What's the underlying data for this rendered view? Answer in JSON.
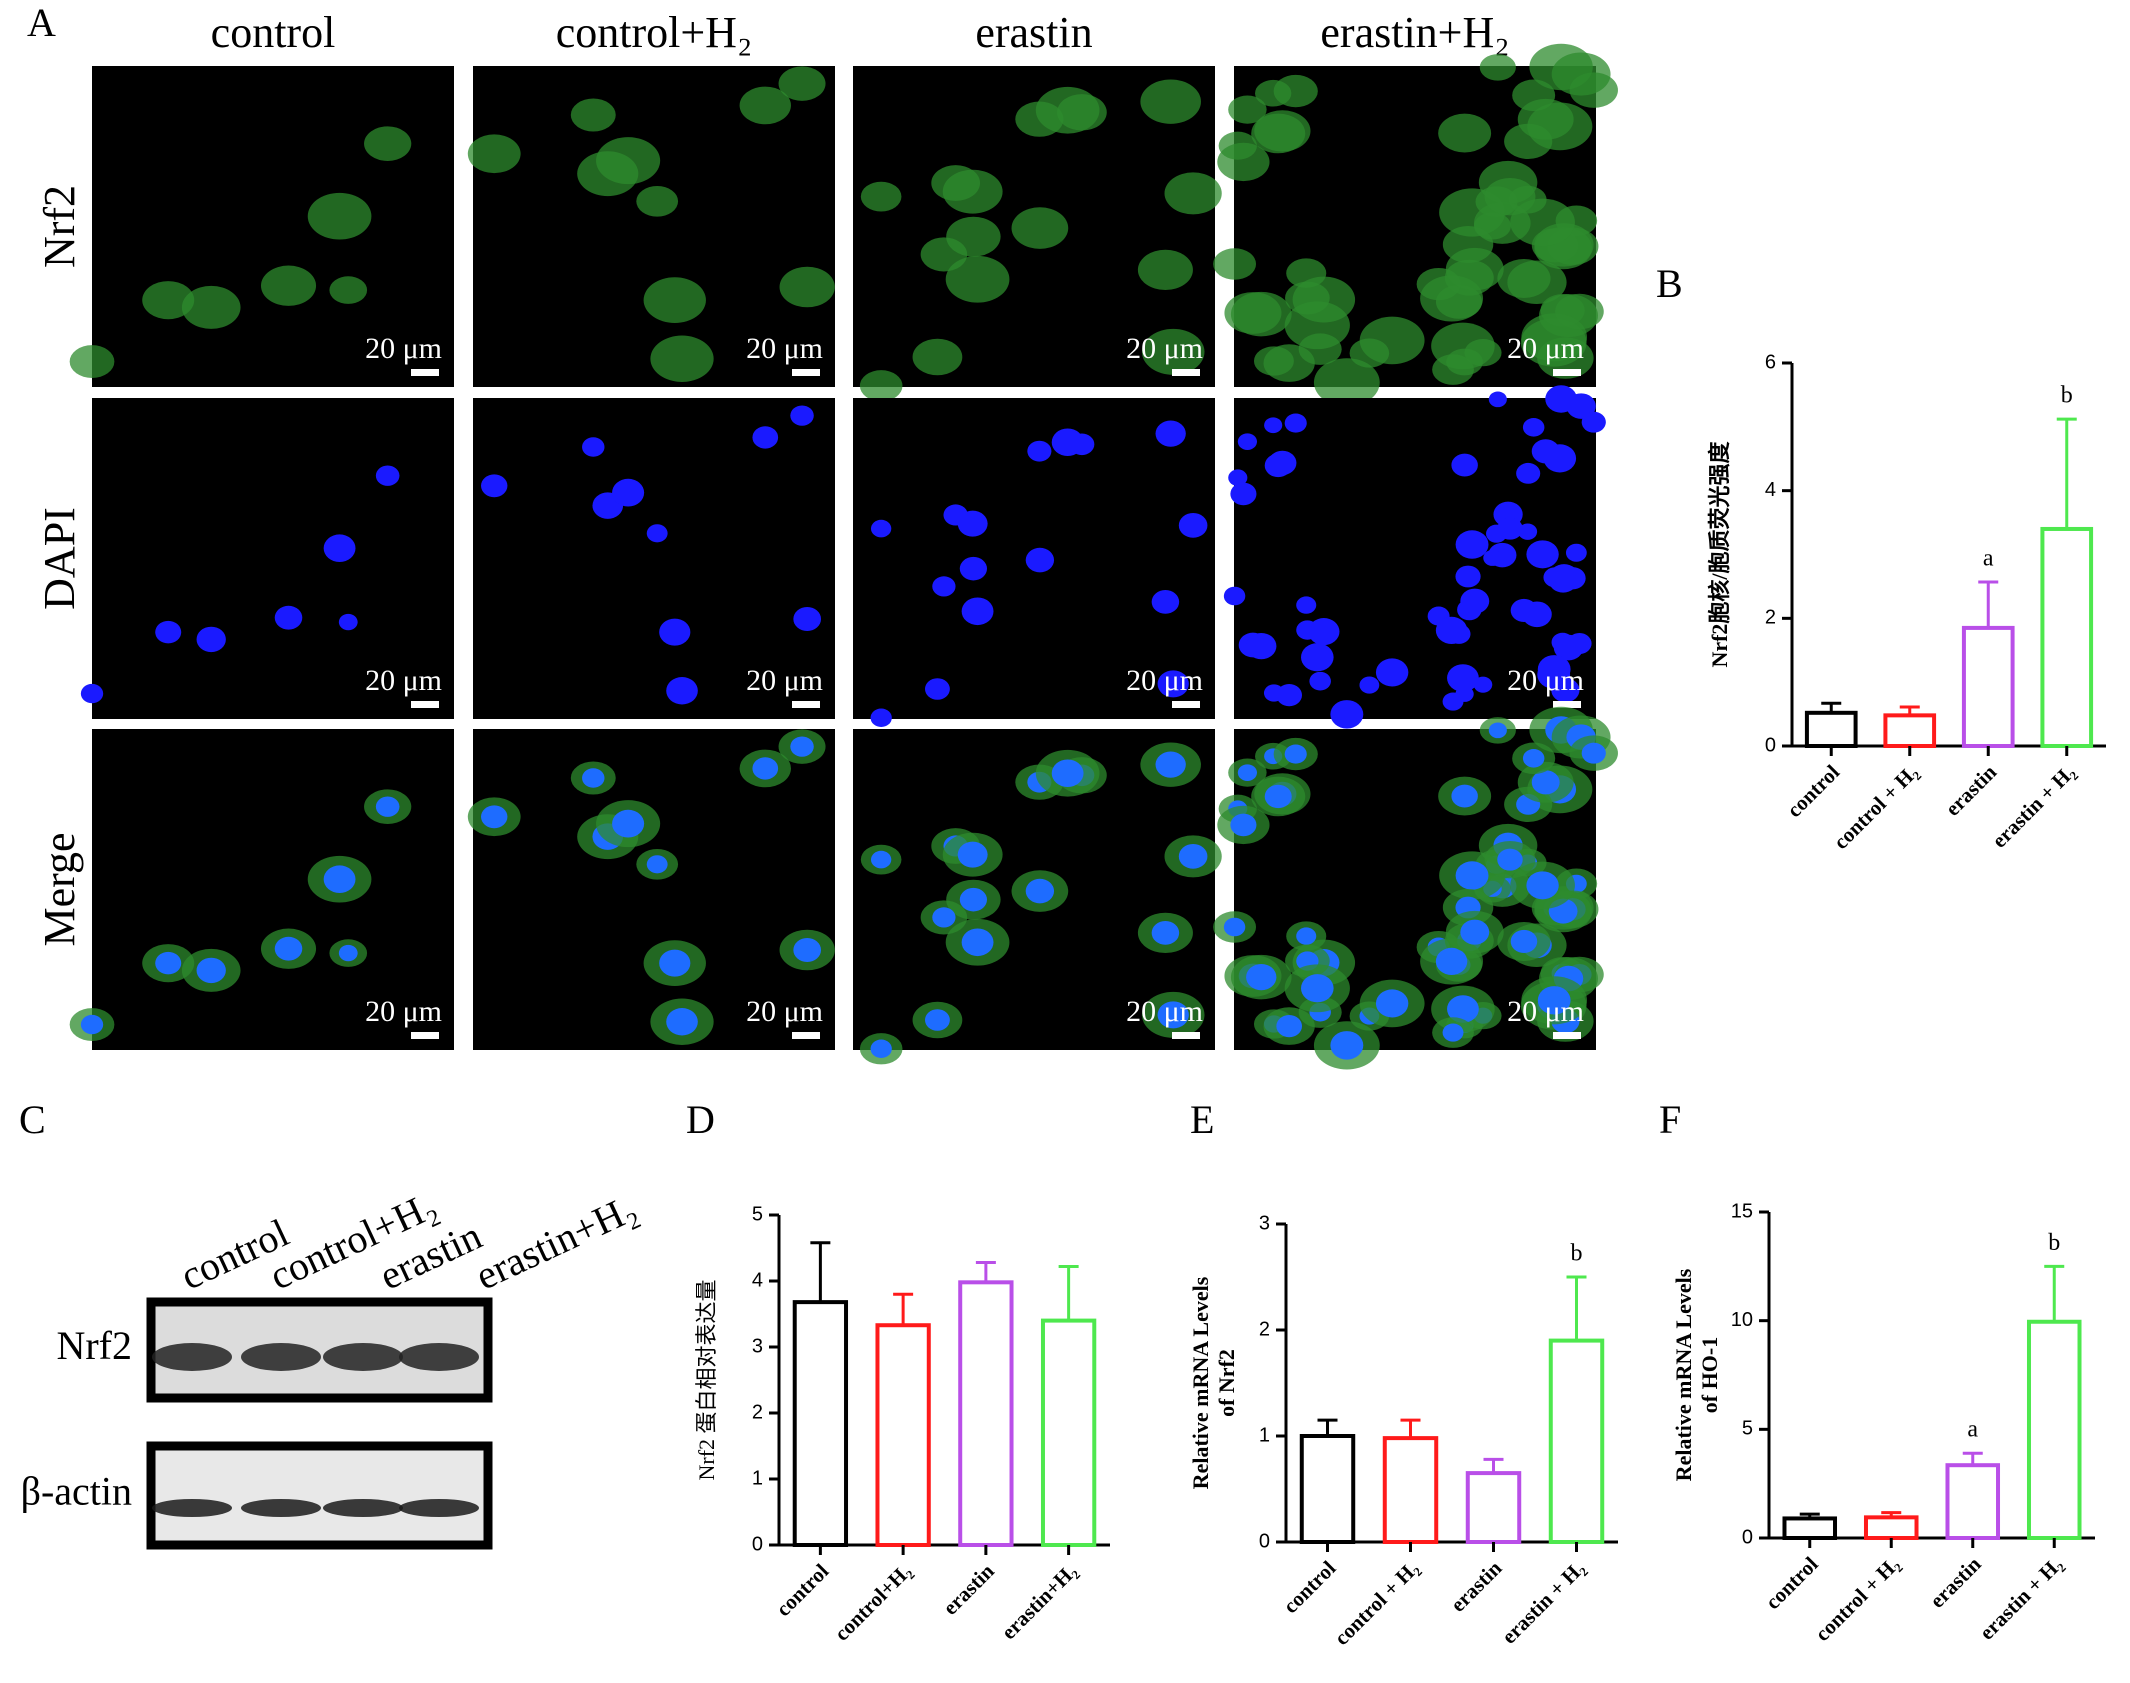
{
  "panel_labels": [
    "A",
    "B",
    "C",
    "D",
    "E",
    "F"
  ],
  "micrographs": {
    "columns": [
      "control",
      "control+H₂",
      "erastin",
      "erastin+H₂"
    ],
    "rows": [
      "Nrf2",
      "DAPI",
      "Merge"
    ],
    "scale_bar": "20 μm"
  },
  "western_blot": {
    "lanes": [
      "control",
      "control+H₂",
      "erastin",
      "erastin+H₂"
    ],
    "bands": [
      "Nrf2",
      "β-actin"
    ]
  },
  "chart_data": [
    {
      "type": "bar",
      "ylabel": [
        "Nrf2胞核/胞质荧光强度"
      ],
      "categories": [
        "control",
        "control + H₂",
        "erastin",
        "erastin + H₂"
      ],
      "values": [
        0.52,
        0.48,
        1.85,
        3.4
      ],
      "errors": [
        0.15,
        0.13,
        0.72,
        1.72
      ],
      "annotations": [
        null,
        null,
        "a",
        "b"
      ],
      "colors": [
        "#000000",
        "#ff1a1a",
        "#b94fe8",
        "#4ee84e"
      ],
      "ylim": [
        0,
        6
      ],
      "yticks": [
        0,
        2,
        4,
        6
      ]
    },
    {
      "type": "bar",
      "ylabel": [
        "Nrf2 蛋白相对表达量"
      ],
      "categories": [
        "control",
        "control+H₂",
        "erastin",
        "erastin+H₂"
      ],
      "values": [
        3.68,
        3.33,
        3.98,
        3.4
      ],
      "errors": [
        0.9,
        0.47,
        0.3,
        0.82
      ],
      "annotations": [
        null,
        null,
        null,
        null
      ],
      "colors": [
        "#000000",
        "#ff1a1a",
        "#b94fe8",
        "#4ee84e"
      ],
      "ylim": [
        0,
        5
      ],
      "yticks": [
        0,
        1,
        2,
        3,
        4,
        5
      ]
    },
    {
      "type": "bar",
      "ylabel": [
        "Relative mRNA Levels",
        "of Nrf2"
      ],
      "categories": [
        "control",
        "control + H₂",
        "erastin",
        "erastin + H₂"
      ],
      "values": [
        1.0,
        0.98,
        0.65,
        1.9
      ],
      "errors": [
        0.15,
        0.17,
        0.13,
        0.6
      ],
      "annotations": [
        null,
        null,
        null,
        "b"
      ],
      "colors": [
        "#000000",
        "#ff1a1a",
        "#b94fe8",
        "#4ee84e"
      ],
      "ylim": [
        0,
        3
      ],
      "yticks": [
        0,
        1,
        2,
        3
      ]
    },
    {
      "type": "bar",
      "ylabel": [
        "Relative mRNA Levels",
        "of HO-1"
      ],
      "categories": [
        "control",
        "control + H₂",
        "erastin",
        "erastin + H₂"
      ],
      "values": [
        0.9,
        0.95,
        3.35,
        9.95
      ],
      "errors": [
        0.2,
        0.22,
        0.55,
        2.55
      ],
      "annotations": [
        null,
        null,
        "a",
        "b"
      ],
      "colors": [
        "#000000",
        "#ff1a1a",
        "#b94fe8",
        "#4ee84e"
      ],
      "ylim": [
        0,
        15
      ],
      "yticks": [
        0,
        5,
        10,
        15
      ]
    }
  ]
}
